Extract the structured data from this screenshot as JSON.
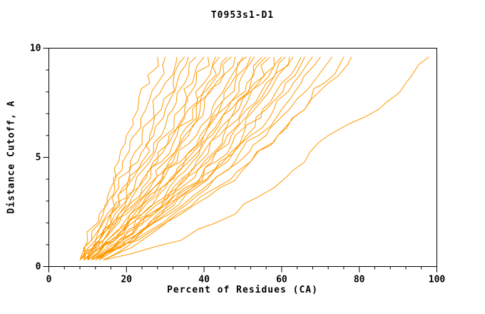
{
  "chart_data": {
    "type": "line",
    "title": "T0953s1-D1",
    "xlabel": "Percent of Residues (CA)",
    "ylabel": "Distance Cutoff, A",
    "xlim": [
      0,
      100
    ],
    "ylim": [
      0,
      10
    ],
    "x_major_ticks": [
      0,
      20,
      40,
      60,
      80,
      100
    ],
    "x_minor_step": 4,
    "y_major_ticks": [
      0,
      5,
      10
    ],
    "y_minor_step": 1,
    "grid": false,
    "legend": "none",
    "line_color": "#ff9900",
    "axis_color": "#000000",
    "background_color": "#ffffff",
    "curves_y": [
      0.3,
      1.2,
      2.4,
      3.6,
      4.8,
      6.0,
      7.2,
      8.4,
      9.6
    ],
    "curves_x": [
      [
        8,
        10,
        13,
        16,
        18,
        20,
        23,
        26,
        28
      ],
      [
        9,
        11,
        14,
        17,
        19,
        22,
        25,
        28,
        30
      ],
      [
        8,
        11,
        15,
        18,
        21,
        24,
        27,
        30,
        33
      ],
      [
        9,
        12,
        16,
        19,
        23,
        26,
        29,
        32,
        35
      ],
      [
        10,
        13,
        16,
        20,
        24,
        27,
        30,
        33,
        36
      ],
      [
        8,
        12,
        16,
        20,
        25,
        29,
        32,
        35,
        38
      ],
      [
        9,
        13,
        17,
        22,
        26,
        30,
        34,
        37,
        40
      ],
      [
        10,
        14,
        18,
        23,
        27,
        31,
        35,
        38,
        41
      ],
      [
        9,
        13,
        18,
        23,
        28,
        32,
        36,
        40,
        43
      ],
      [
        10,
        14,
        19,
        24,
        29,
        33,
        37,
        41,
        44
      ],
      [
        8,
        13,
        19,
        25,
        30,
        34,
        38,
        42,
        46
      ],
      [
        9,
        14,
        20,
        26,
        31,
        35,
        39,
        43,
        47
      ],
      [
        10,
        15,
        21,
        27,
        32,
        36,
        40,
        44,
        48
      ],
      [
        9,
        15,
        21,
        27,
        33,
        38,
        42,
        46,
        50
      ],
      [
        10,
        16,
        22,
        28,
        34,
        39,
        43,
        47,
        51
      ],
      [
        11,
        17,
        23,
        29,
        35,
        40,
        44,
        48,
        52
      ],
      [
        10,
        16,
        23,
        29,
        35,
        40,
        45,
        49,
        53
      ],
      [
        11,
        17,
        24,
        30,
        36,
        41,
        46,
        51,
        55
      ],
      [
        10,
        17,
        24,
        31,
        37,
        42,
        47,
        52,
        56
      ],
      [
        11,
        18,
        25,
        32,
        38,
        43,
        48,
        53,
        57
      ],
      [
        12,
        19,
        26,
        33,
        39,
        44,
        49,
        54,
        58
      ],
      [
        11,
        18,
        26,
        33,
        40,
        45,
        50,
        55,
        60
      ],
      [
        12,
        19,
        27,
        34,
        41,
        46,
        51,
        56,
        61
      ],
      [
        11,
        19,
        27,
        35,
        42,
        47,
        52,
        57,
        62
      ],
      [
        12,
        20,
        28,
        36,
        43,
        48,
        53,
        58,
        63
      ],
      [
        13,
        21,
        29,
        37,
        44,
        50,
        55,
        60,
        65
      ],
      [
        12,
        20,
        29,
        37,
        45,
        51,
        56,
        61,
        66
      ],
      [
        13,
        21,
        30,
        38,
        46,
        52,
        58,
        63,
        68
      ],
      [
        14,
        22,
        31,
        40,
        48,
        54,
        60,
        65,
        70
      ],
      [
        13,
        22,
        32,
        41,
        49,
        56,
        62,
        68,
        73
      ],
      [
        13,
        23,
        33,
        43,
        52,
        59,
        66,
        71,
        76
      ],
      [
        14,
        24,
        34,
        44,
        52,
        59,
        66,
        72,
        78
      ],
      [
        14,
        34,
        48,
        58,
        66,
        72,
        85,
        92,
        98
      ]
    ]
  }
}
